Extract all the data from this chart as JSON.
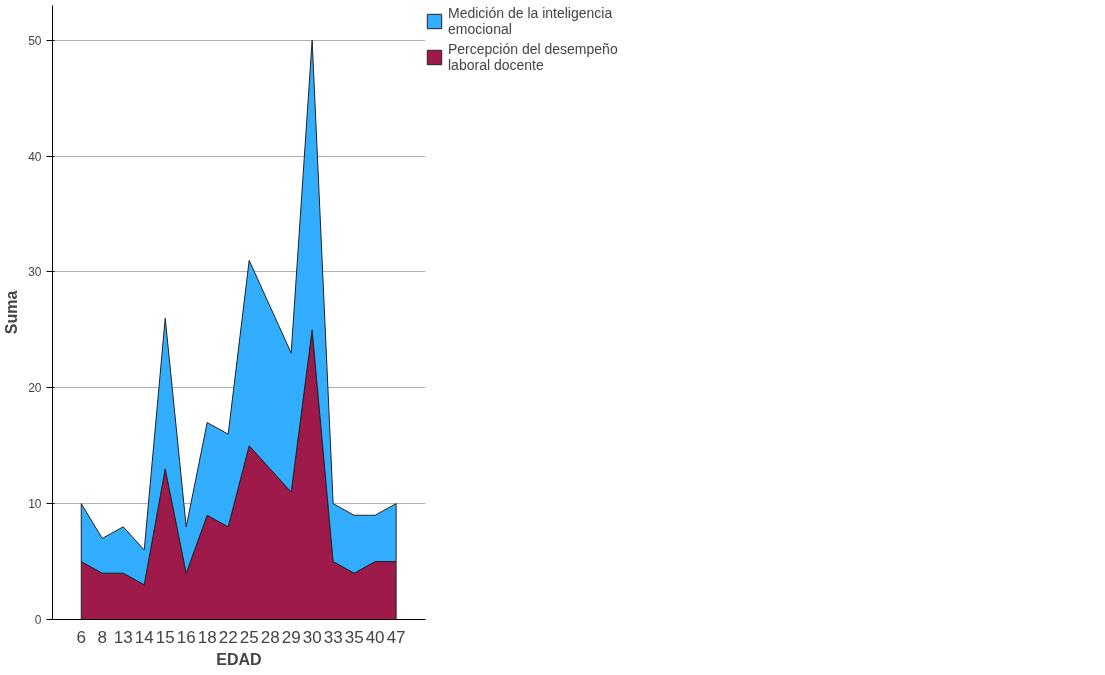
{
  "chart_data": {
    "type": "area",
    "stacked": true,
    "xlabel": "EDAD",
    "ylabel": "Suma",
    "categories": [
      "6",
      "8",
      "13",
      "14",
      "15",
      "16",
      "18",
      "22",
      "25",
      "28",
      "29",
      "30",
      "33",
      "35",
      "40",
      "47"
    ],
    "series": [
      {
        "name": "Percepción del desempeño laboral docente",
        "color": "#9e1a4b",
        "values": [
          5,
          4,
          4,
          3,
          13,
          4,
          9,
          8,
          15,
          13,
          11,
          25,
          5,
          4,
          5,
          5
        ]
      },
      {
        "name": "Medición de la inteligencia emocional",
        "color": "#33adff",
        "values": [
          5,
          3,
          4,
          3,
          13,
          4,
          8,
          8,
          16,
          14,
          12,
          25,
          5,
          5,
          4,
          5
        ]
      }
    ],
    "ylim": [
      0,
      53
    ],
    "yticks": [
      0,
      10,
      20,
      30,
      40,
      50
    ],
    "grid": "y",
    "legend": "top right"
  }
}
